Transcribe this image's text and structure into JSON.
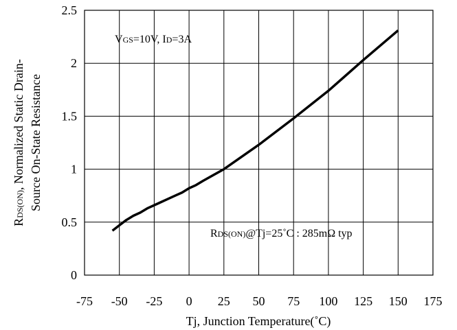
{
  "chart_data": {
    "type": "line",
    "title": "",
    "xlabel": "Tj, Junction Temperature(˚C)",
    "ylabel_line1": "RDS(ON), Normalized Static Drain-",
    "ylabel_line2": "Source On-State Resistance",
    "ylabel_parts": {
      "main": "R",
      "sub": "DS(ON)",
      "rest": ", Normalized Static Drain-"
    },
    "xlim": [
      -75,
      175
    ],
    "ylim": [
      0,
      2.5
    ],
    "x_ticks": [
      "-75",
      "-50",
      "-25",
      "0",
      "25",
      "50",
      "75",
      "100",
      "125",
      "150",
      "175"
    ],
    "y_ticks": [
      "0",
      "0.5",
      "1",
      "1.5",
      "2",
      "2.5"
    ],
    "grid": true,
    "series": [
      {
        "x": [
          -55,
          -50,
          -45,
          -40,
          -35,
          -30,
          -25,
          -20,
          -15,
          -10,
          -5,
          0,
          5,
          10,
          25,
          50,
          75,
          100,
          125,
          150
        ],
        "y": [
          0.42,
          0.47,
          0.52,
          0.56,
          0.59,
          0.63,
          0.66,
          0.69,
          0.72,
          0.75,
          0.78,
          0.82,
          0.85,
          0.89,
          1.0,
          1.23,
          1.48,
          1.74,
          2.03,
          2.31
        ]
      }
    ],
    "annotations": [
      {
        "text": "VGS=10V, ID=3A",
        "parts": [
          {
            "t": "V",
            "sub": false
          },
          {
            "t": "GS",
            "sub": true
          },
          {
            "t": "=10V, I",
            "sub": false
          },
          {
            "t": "D",
            "sub": true
          },
          {
            "t": "=3A",
            "sub": false
          }
        ]
      },
      {
        "text": "RDS(ON)@Tj=25˚C : 285mΩ typ",
        "parts": [
          {
            "t": "R",
            "sub": false
          },
          {
            "t": "DS(ON)",
            "sub": true
          },
          {
            "t": "@Tj=25˚C : 285mΩ  typ",
            "sub": false
          }
        ]
      }
    ]
  }
}
